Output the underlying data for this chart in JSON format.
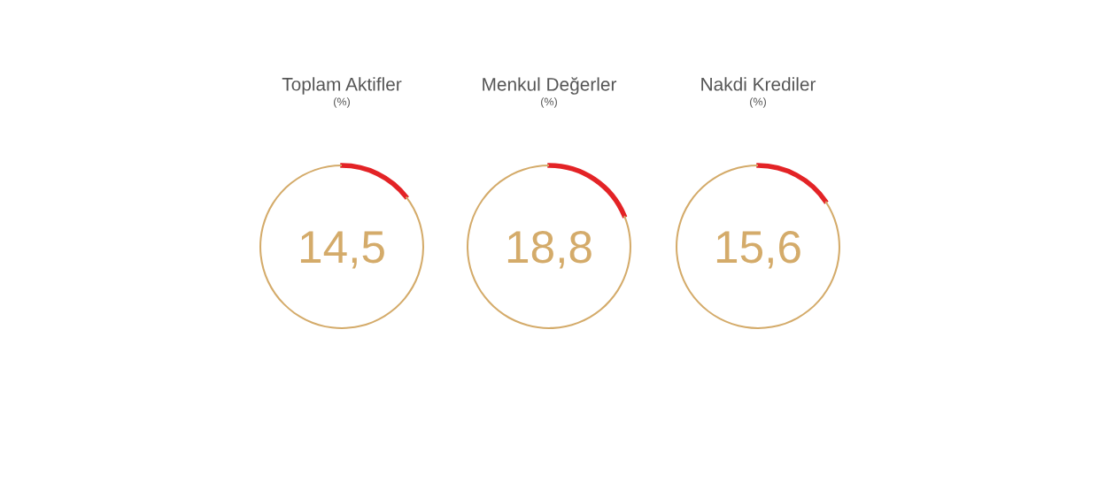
{
  "chart_data": [
    {
      "type": "donut",
      "title": "Toplam Aktifler",
      "subtitle": "(%)",
      "categories": [
        null,
        null
      ],
      "values": [
        14.5,
        85.5
      ],
      "colors": [
        "#e32326",
        "#d4ab6a"
      ],
      "annotations": [
        "14,5"
      ]
    },
    {
      "type": "donut",
      "title": "Menkul Değerler",
      "subtitle": "(%)",
      "categories": [
        null,
        null
      ],
      "values": [
        18.8,
        81.2
      ],
      "colors": [
        "#e32326",
        "#d4ab6a"
      ],
      "annotations": [
        "18,8"
      ]
    },
    {
      "type": "donut",
      "title": "Nakdi Krediler",
      "subtitle": "(%)",
      "categories": [
        null,
        null
      ],
      "values": [
        15.6,
        84.4
      ],
      "colors": [
        "#e32326",
        "#d4ab6a"
      ],
      "annotations": [
        "15,6"
      ]
    }
  ]
}
